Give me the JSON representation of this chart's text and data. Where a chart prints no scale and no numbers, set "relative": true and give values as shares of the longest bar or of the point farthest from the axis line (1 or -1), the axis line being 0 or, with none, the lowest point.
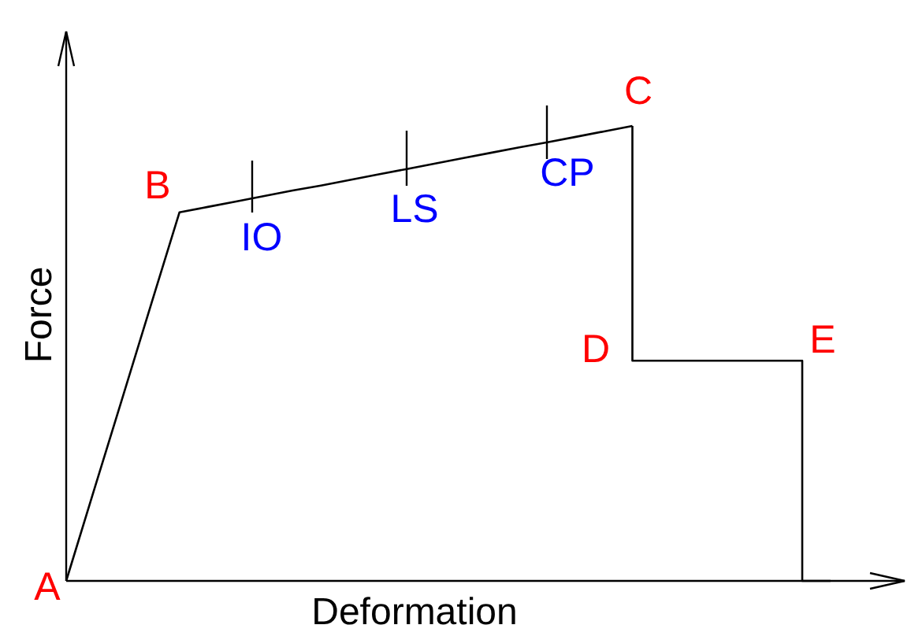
{
  "chart_data": {
    "type": "line",
    "relative": true,
    "xlabel": "Deformation",
    "ylabel": "Force",
    "categories": [
      null,
      null,
      null,
      null,
      null,
      null,
      null,
      null,
      null,
      null,
      null,
      null,
      null,
      null,
      null,
      null,
      null,
      null,
      null,
      null,
      null,
      null,
      null,
      null,
      null,
      null,
      null,
      null
    ],
    "series": [
      {
        "color": "#000000",
        "values": [
          0,
          0.203,
          0.405,
          0.608,
          0.81,
          0.822,
          0.834,
          0.846,
          0.858,
          0.869,
          0.881,
          0.893,
          0.905,
          0.917,
          0.929,
          0.941,
          0.953,
          0.964,
          0.976,
          0.988,
          1,
          null,
          null,
          null,
          null,
          null,
          null,
          null
        ]
      },
      {
        "type": "step",
        "color": "#000000",
        "values": [
          null,
          null,
          null,
          null,
          null,
          null,
          null,
          null,
          null,
          null,
          null,
          null,
          null,
          null,
          null,
          null,
          null,
          null,
          null,
          null,
          1,
          0.484,
          0.484,
          0.484,
          0.484,
          0.484,
          0.484,
          0
        ]
      }
    ],
    "annotations": [
      "A",
      "B",
      "C",
      "D",
      "E",
      "IO",
      "LS",
      "CP"
    ]
  }
}
